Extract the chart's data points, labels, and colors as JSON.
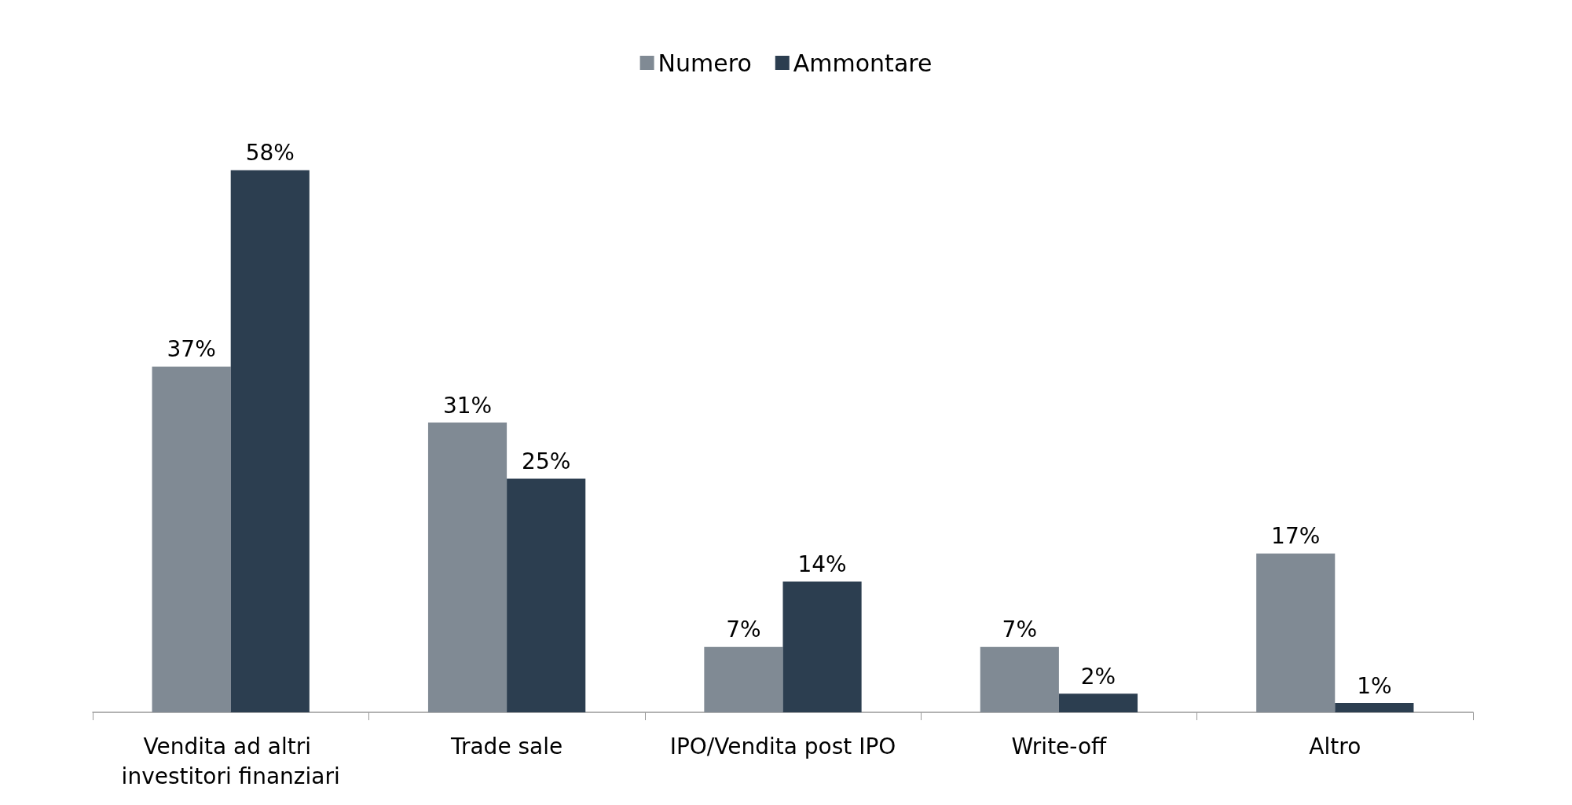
{
  "chart_data": {
    "type": "bar",
    "categories": [
      "Vendita ad altri investitori finanziari",
      "Trade sale",
      "IPO/Vendita post IPO",
      "Write-off",
      "Altro"
    ],
    "series": [
      {
        "name": "Numero",
        "color": "#808a94",
        "values": [
          37,
          31,
          7,
          7,
          17
        ],
        "value_labels": [
          "37%",
          "31%",
          "7%",
          "7%",
          "17%"
        ]
      },
      {
        "name": "Ammontare",
        "color": "#2c3e50",
        "values": [
          58,
          25,
          14,
          2,
          1
        ],
        "value_labels": [
          "58%",
          "25%",
          "14%",
          "2%",
          "1%"
        ]
      }
    ],
    "legend": "top"
  }
}
